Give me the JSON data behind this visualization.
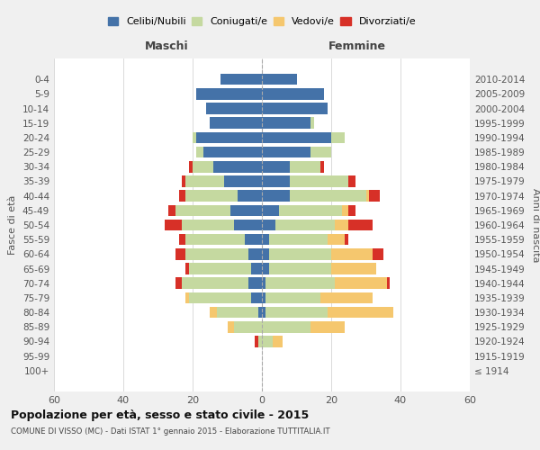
{
  "age_groups": [
    "0-4",
    "5-9",
    "10-14",
    "15-19",
    "20-24",
    "25-29",
    "30-34",
    "35-39",
    "40-44",
    "45-49",
    "50-54",
    "55-59",
    "60-64",
    "65-69",
    "70-74",
    "75-79",
    "80-84",
    "85-89",
    "90-94",
    "95-99",
    "100+"
  ],
  "birth_years": [
    "2010-2014",
    "2005-2009",
    "2000-2004",
    "1995-1999",
    "1990-1994",
    "1985-1989",
    "1980-1984",
    "1975-1979",
    "1970-1974",
    "1965-1969",
    "1960-1964",
    "1955-1959",
    "1950-1954",
    "1945-1949",
    "1940-1944",
    "1935-1939",
    "1930-1934",
    "1925-1929",
    "1920-1924",
    "1915-1919",
    "≤ 1914"
  ],
  "male": {
    "celibi": [
      12,
      19,
      16,
      15,
      19,
      17,
      14,
      11,
      7,
      9,
      8,
      5,
      4,
      3,
      4,
      3,
      1,
      0,
      0,
      0,
      0
    ],
    "coniugati": [
      0,
      0,
      0,
      0,
      1,
      2,
      6,
      11,
      15,
      16,
      15,
      17,
      18,
      18,
      19,
      18,
      12,
      8,
      1,
      0,
      0
    ],
    "vedovi": [
      0,
      0,
      0,
      0,
      0,
      0,
      0,
      0,
      0,
      0,
      0,
      0,
      0,
      0,
      0,
      1,
      2,
      2,
      0,
      0,
      0
    ],
    "divorziati": [
      0,
      0,
      0,
      0,
      0,
      0,
      1,
      1,
      2,
      2,
      5,
      2,
      3,
      1,
      2,
      0,
      0,
      0,
      1,
      0,
      0
    ]
  },
  "female": {
    "nubili": [
      10,
      18,
      19,
      14,
      20,
      14,
      8,
      8,
      8,
      5,
      4,
      2,
      2,
      2,
      1,
      1,
      1,
      0,
      0,
      0,
      0
    ],
    "coniugate": [
      0,
      0,
      0,
      1,
      4,
      6,
      9,
      17,
      22,
      18,
      17,
      17,
      18,
      18,
      20,
      16,
      18,
      14,
      3,
      0,
      0
    ],
    "vedove": [
      0,
      0,
      0,
      0,
      0,
      0,
      0,
      0,
      1,
      2,
      4,
      5,
      12,
      13,
      15,
      15,
      19,
      10,
      3,
      0,
      0
    ],
    "divorziate": [
      0,
      0,
      0,
      0,
      0,
      0,
      1,
      2,
      3,
      2,
      7,
      1,
      3,
      0,
      1,
      0,
      0,
      0,
      0,
      0,
      0
    ]
  },
  "colors": {
    "celibi": "#4472A8",
    "coniugati": "#c5d9a0",
    "vedovi": "#f5c76e",
    "divorziati": "#d73027"
  },
  "title": "Popolazione per età, sesso e stato civile - 2015",
  "subtitle": "COMUNE DI VISSO (MC) - Dati ISTAT 1° gennaio 2015 - Elaborazione TUTTITALIA.IT",
  "xlabel_left": "Maschi",
  "xlabel_right": "Femmine",
  "ylabel_left": "Fasce di età",
  "ylabel_right": "Anni di nascita",
  "xlim": 60,
  "legend_labels": [
    "Celibi/Nubili",
    "Coniugati/e",
    "Vedovi/e",
    "Divorziati/e"
  ],
  "bg_color": "#f0f0f0",
  "plot_bg_color": "#ffffff"
}
